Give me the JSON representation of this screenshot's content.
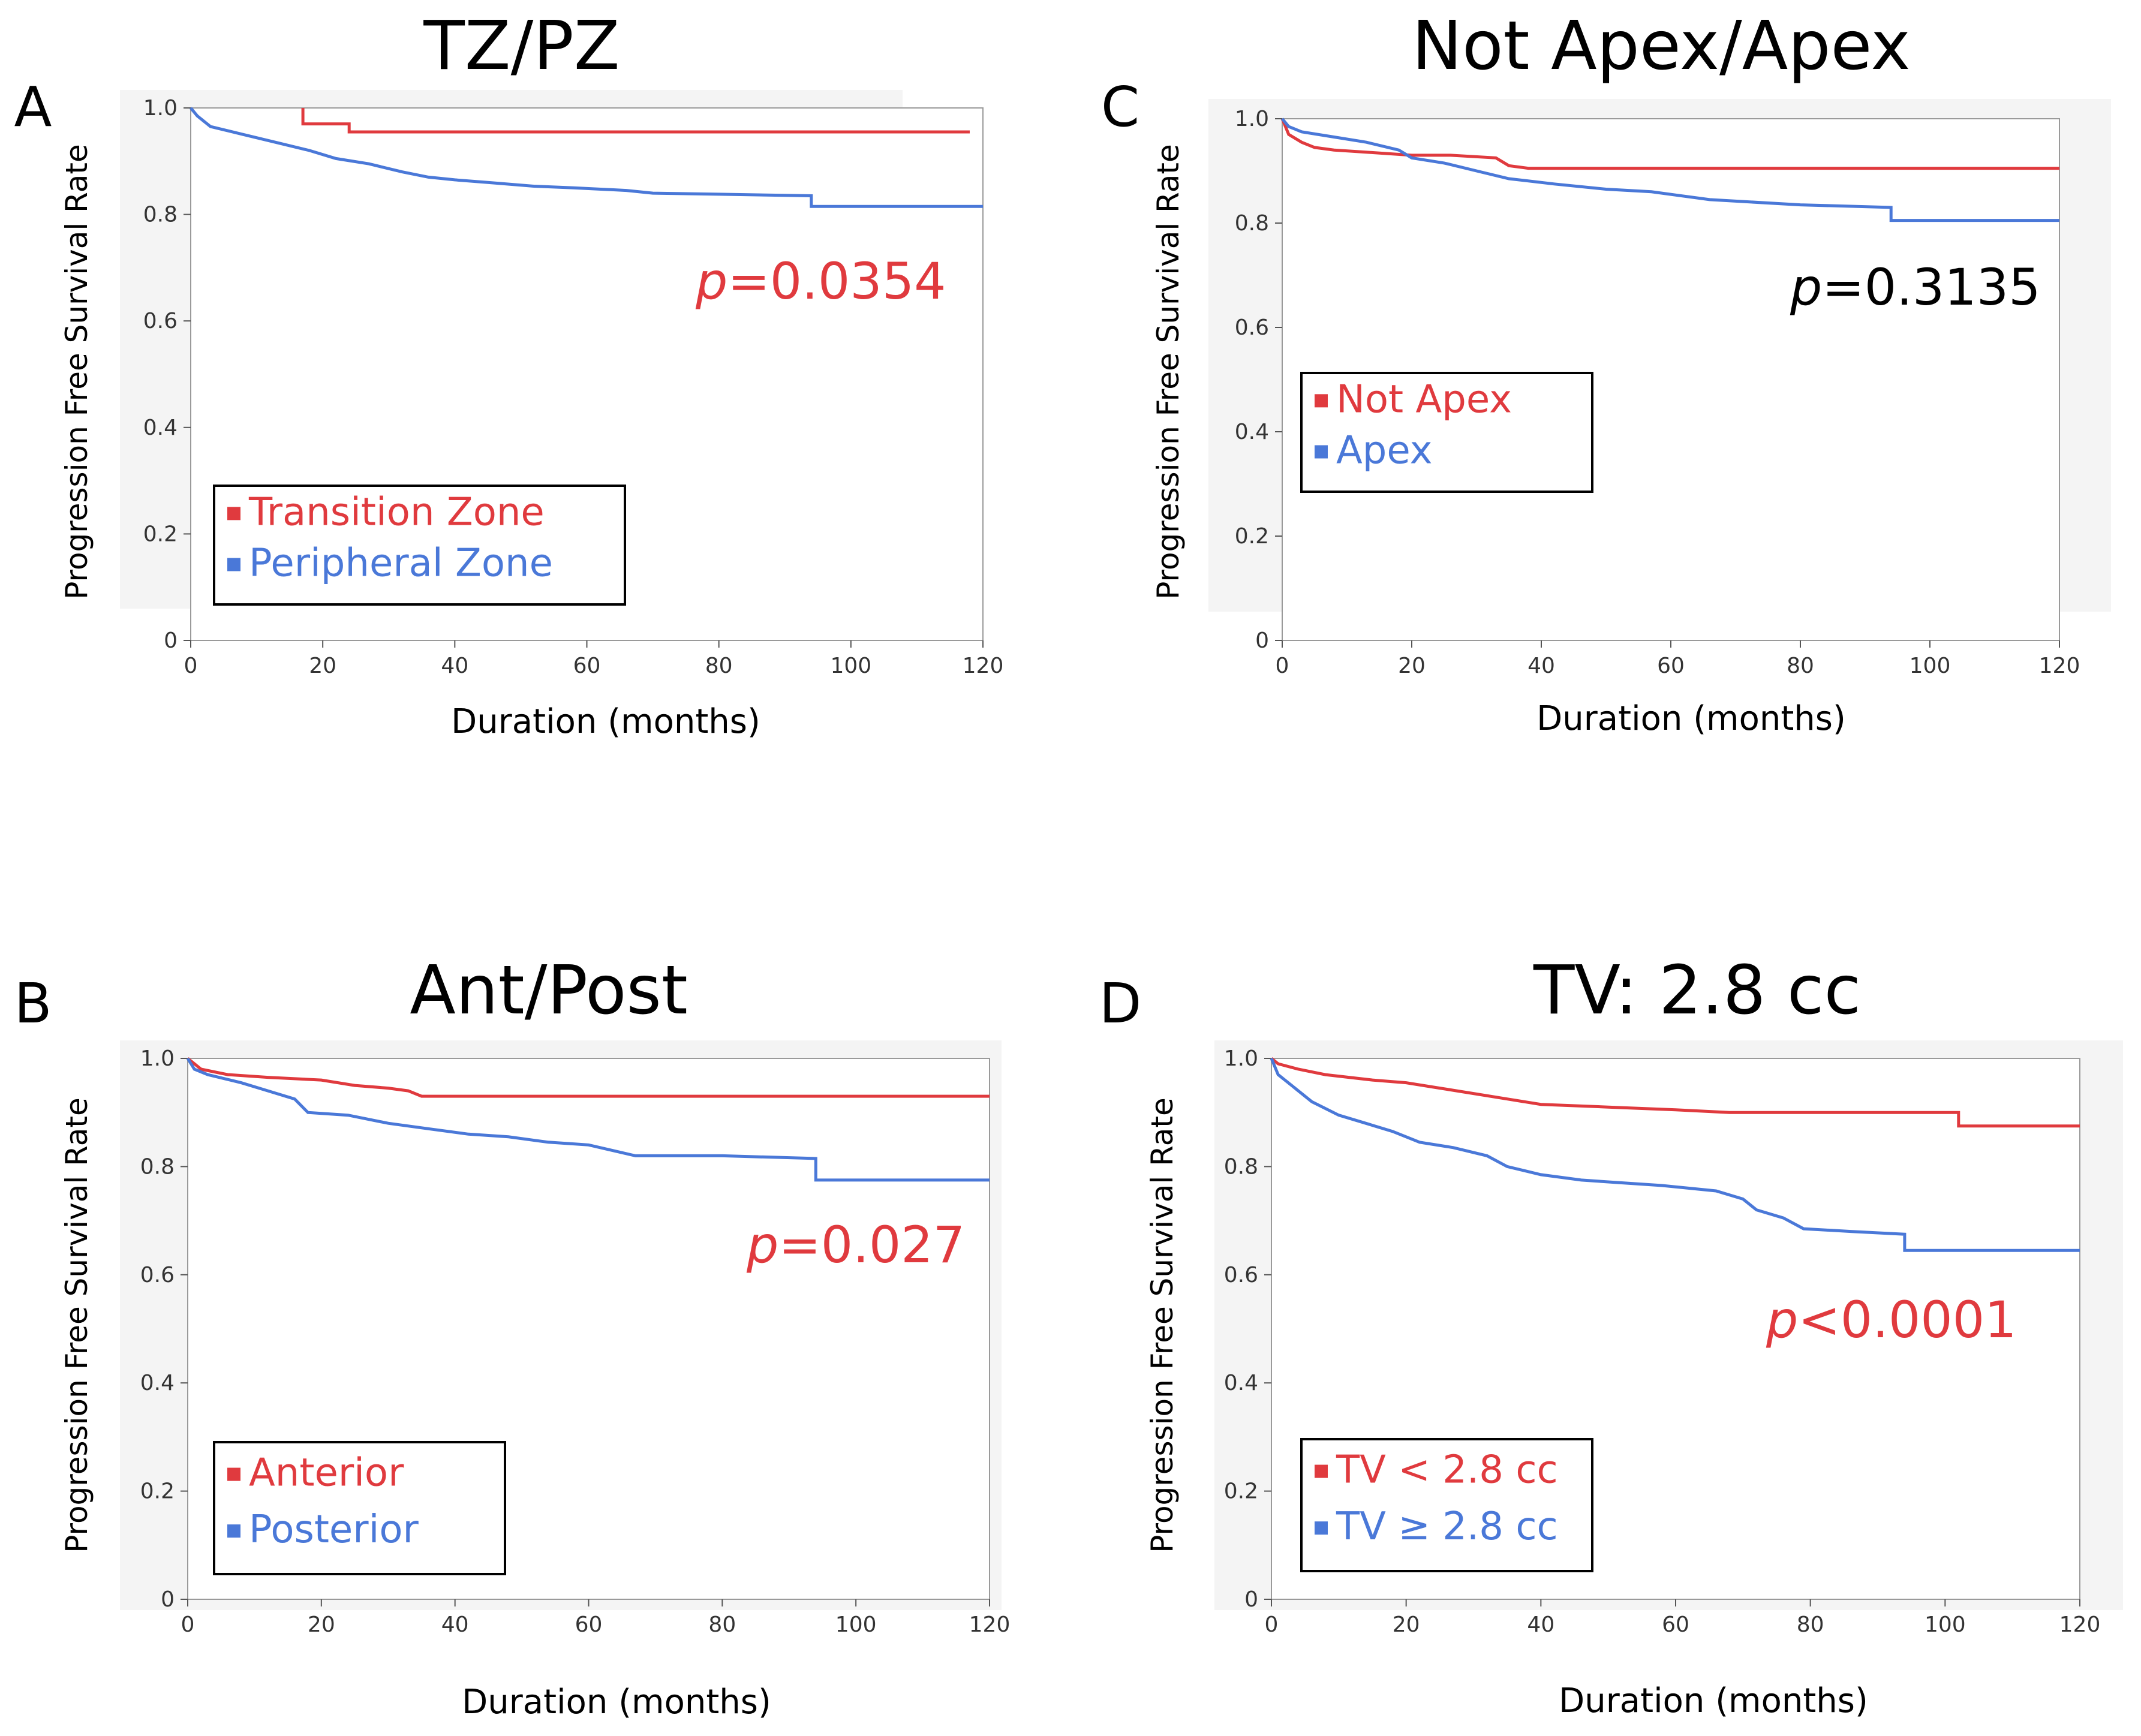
{
  "figure": {
    "colors": {
      "red": "#e03a3e",
      "blue": "#4a78d8",
      "pred": "#ff1a1a",
      "black": "#000000",
      "panel_bg": "#f4f4f4"
    }
  },
  "chart_data": [
    {
      "panel_id": "A",
      "type": "line",
      "title": "TZ/PZ",
      "xlabel": "Duration (months)",
      "ylabel": "Progression Free Survival Rate",
      "xlim": [
        0,
        120
      ],
      "ylim": [
        0,
        1.0
      ],
      "xticks": [
        "0",
        "20",
        "40",
        "60",
        "80",
        "100",
        "120"
      ],
      "yticks": [
        "0",
        "0.2",
        "0.4",
        "0.6",
        "0.8",
        "1.0"
      ],
      "p_label": "p",
      "p_value": "=0.0354",
      "p_color": "red",
      "legend": [
        {
          "label": "Transition Zone",
          "color": "red"
        },
        {
          "label": "Peripheral Zone",
          "color": "blue"
        }
      ],
      "series": [
        {
          "name": "Transition Zone",
          "color": "red",
          "points": [
            [
              17,
              1.0
            ],
            [
              17,
              0.97
            ],
            [
              24,
              0.97
            ],
            [
              24,
              0.955
            ],
            [
              118,
              0.955
            ]
          ]
        },
        {
          "name": "Peripheral Zone",
          "color": "blue",
          "points": [
            [
              0,
              1.0
            ],
            [
              1,
              0.985
            ],
            [
              3,
              0.965
            ],
            [
              8,
              0.95
            ],
            [
              13,
              0.935
            ],
            [
              18,
              0.92
            ],
            [
              22,
              0.905
            ],
            [
              27,
              0.895
            ],
            [
              32,
              0.88
            ],
            [
              36,
              0.87
            ],
            [
              40,
              0.865
            ],
            [
              45,
              0.86
            ],
            [
              52,
              0.853
            ],
            [
              58,
              0.85
            ],
            [
              66,
              0.845
            ],
            [
              70,
              0.84
            ],
            [
              80,
              0.838
            ],
            [
              94,
              0.835
            ],
            [
              94,
              0.815
            ],
            [
              120,
              0.815
            ]
          ]
        }
      ]
    },
    {
      "panel_id": "C",
      "type": "line",
      "title": "Not Apex/Apex",
      "xlabel": "Duration (months)",
      "ylabel": "Progression Free Survival Rate",
      "xlim": [
        0,
        120
      ],
      "ylim": [
        0,
        1.0
      ],
      "xticks": [
        "0",
        "20",
        "40",
        "60",
        "80",
        "100",
        "120"
      ],
      "yticks": [
        "0",
        "0.2",
        "0.4",
        "0.6",
        "0.8",
        "1.0"
      ],
      "p_label": "p",
      "p_value": "=0.3135",
      "p_color": "black",
      "legend": [
        {
          "label": "Not Apex",
          "color": "red"
        },
        {
          "label": "Apex",
          "color": "blue"
        }
      ],
      "series": [
        {
          "name": "Not Apex",
          "color": "red",
          "points": [
            [
              0,
              1.0
            ],
            [
              1,
              0.97
            ],
            [
              3,
              0.955
            ],
            [
              5,
              0.945
            ],
            [
              8,
              0.94
            ],
            [
              14,
              0.935
            ],
            [
              20,
              0.93
            ],
            [
              26,
              0.93
            ],
            [
              33,
              0.925
            ],
            [
              35,
              0.91
            ],
            [
              38,
              0.905
            ],
            [
              45,
              0.905
            ],
            [
              60,
              0.905
            ],
            [
              120,
              0.905
            ]
          ]
        },
        {
          "name": "Apex",
          "color": "blue",
          "points": [
            [
              0,
              1.0
            ],
            [
              1,
              0.985
            ],
            [
              3,
              0.975
            ],
            [
              8,
              0.965
            ],
            [
              13,
              0.955
            ],
            [
              18,
              0.94
            ],
            [
              20,
              0.925
            ],
            [
              25,
              0.915
            ],
            [
              30,
              0.9
            ],
            [
              35,
              0.885
            ],
            [
              42,
              0.875
            ],
            [
              50,
              0.865
            ],
            [
              57,
              0.86
            ],
            [
              66,
              0.845
            ],
            [
              80,
              0.835
            ],
            [
              94,
              0.83
            ],
            [
              94,
              0.805
            ],
            [
              120,
              0.805
            ]
          ]
        }
      ]
    },
    {
      "panel_id": "B",
      "type": "line",
      "title": "Ant/Post",
      "xlabel": "Duration (months)",
      "ylabel": "Progression Free Survival Rate",
      "xlim": [
        0,
        120
      ],
      "ylim": [
        0,
        1.0
      ],
      "xticks": [
        "0",
        "20",
        "40",
        "60",
        "80",
        "100",
        "120"
      ],
      "yticks": [
        "0",
        "0.2",
        "0.4",
        "0.6",
        "0.8",
        "1.0"
      ],
      "p_label": "p",
      "p_value": "=0.027",
      "p_color": "red",
      "legend": [
        {
          "label": "Anterior",
          "color": "red"
        },
        {
          "label": "Posterior",
          "color": "blue"
        }
      ],
      "series": [
        {
          "name": "Anterior",
          "color": "red",
          "points": [
            [
              0,
              1.0
            ],
            [
              2,
              0.98
            ],
            [
              6,
              0.97
            ],
            [
              12,
              0.965
            ],
            [
              20,
              0.96
            ],
            [
              25,
              0.95
            ],
            [
              30,
              0.945
            ],
            [
              33,
              0.94
            ],
            [
              35,
              0.93
            ],
            [
              40,
              0.93
            ],
            [
              60,
              0.93
            ],
            [
              120,
              0.93
            ]
          ]
        },
        {
          "name": "Posterior",
          "color": "blue",
          "points": [
            [
              0,
              1.0
            ],
            [
              1,
              0.98
            ],
            [
              3,
              0.97
            ],
            [
              8,
              0.955
            ],
            [
              12,
              0.94
            ],
            [
              16,
              0.925
            ],
            [
              18,
              0.9
            ],
            [
              24,
              0.895
            ],
            [
              30,
              0.88
            ],
            [
              36,
              0.87
            ],
            [
              42,
              0.86
            ],
            [
              48,
              0.855
            ],
            [
              54,
              0.845
            ],
            [
              60,
              0.84
            ],
            [
              67,
              0.82
            ],
            [
              80,
              0.82
            ],
            [
              94,
              0.815
            ],
            [
              94,
              0.775
            ],
            [
              120,
              0.775
            ]
          ]
        }
      ]
    },
    {
      "panel_id": "D",
      "type": "line",
      "title": "TV: 2.8 cc",
      "xlabel": "Duration (months)",
      "ylabel": "Progression Free Survival Rate",
      "xlim": [
        0,
        120
      ],
      "ylim": [
        0,
        1.0
      ],
      "xticks": [
        "0",
        "20",
        "40",
        "60",
        "80",
        "100",
        "120"
      ],
      "yticks": [
        "0",
        "0.2",
        "0.4",
        "0.6",
        "0.8",
        "1.0"
      ],
      "p_label": "p",
      "p_value": "<0.0001",
      "p_color": "red",
      "legend": [
        {
          "label": "TV < 2.8 cc",
          "color": "red"
        },
        {
          "label": "TV ≥ 2.8 cc",
          "color": "blue"
        }
      ],
      "series": [
        {
          "name": "TV < 2.8 cc",
          "color": "red",
          "points": [
            [
              0,
              1.0
            ],
            [
              1,
              0.99
            ],
            [
              4,
              0.98
            ],
            [
              8,
              0.97
            ],
            [
              15,
              0.96
            ],
            [
              20,
              0.955
            ],
            [
              25,
              0.945
            ],
            [
              30,
              0.935
            ],
            [
              35,
              0.925
            ],
            [
              40,
              0.915
            ],
            [
              50,
              0.91
            ],
            [
              60,
              0.905
            ],
            [
              68,
              0.9
            ],
            [
              80,
              0.9
            ],
            [
              102,
              0.9
            ],
            [
              102,
              0.875
            ],
            [
              120,
              0.875
            ]
          ]
        },
        {
          "name": "TV ≥ 2.8 cc",
          "color": "blue",
          "points": [
            [
              0,
              1.0
            ],
            [
              1,
              0.97
            ],
            [
              3,
              0.95
            ],
            [
              6,
              0.92
            ],
            [
              10,
              0.895
            ],
            [
              14,
              0.88
            ],
            [
              18,
              0.865
            ],
            [
              22,
              0.845
            ],
            [
              27,
              0.835
            ],
            [
              32,
              0.82
            ],
            [
              35,
              0.8
            ],
            [
              40,
              0.785
            ],
            [
              46,
              0.775
            ],
            [
              52,
              0.77
            ],
            [
              58,
              0.765
            ],
            [
              62,
              0.76
            ],
            [
              66,
              0.755
            ],
            [
              70,
              0.74
            ],
            [
              72,
              0.72
            ],
            [
              76,
              0.705
            ],
            [
              79,
              0.685
            ],
            [
              86,
              0.68
            ],
            [
              94,
              0.675
            ],
            [
              94,
              0.645
            ],
            [
              120,
              0.645
            ]
          ]
        }
      ]
    }
  ]
}
